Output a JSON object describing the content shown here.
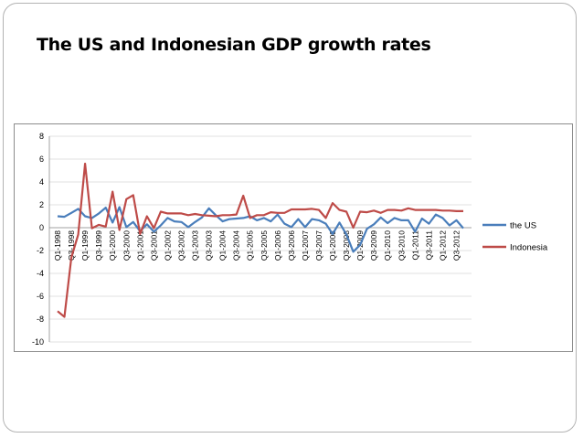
{
  "slide": {
    "title": "The US and Indonesian GDP growth rates",
    "page_number": ""
  },
  "chart_data": {
    "type": "line",
    "title": "",
    "xlabel": "",
    "ylabel": "",
    "ylim": [
      -10,
      8
    ],
    "yticks": [
      8,
      6,
      4,
      2,
      0,
      -2,
      -4,
      -6,
      -8,
      -10
    ],
    "grid": true,
    "legend_placement": "right",
    "tick_labels": [
      "Q1-1998",
      "Q3-1998",
      "Q1-1999",
      "Q3-1999",
      "Q1-2000",
      "Q3-2000",
      "Q1-2001",
      "Q3-2001",
      "Q1-2002",
      "Q3-2002",
      "Q1-2003",
      "Q3-2003",
      "Q1-2004",
      "Q3-2004",
      "Q1-2005",
      "Q3-2005",
      "Q1-2006",
      "Q3-2006",
      "Q1-2007",
      "Q3-2007",
      "Q1-2008",
      "Q3-2008",
      "Q1-2009",
      "Q3-2009",
      "Q1-2010",
      "Q3-2010",
      "Q1-2011",
      "Q3-2011",
      "Q1-2012",
      "Q3-2012"
    ],
    "x_quarters": [
      "Q1-1998",
      "Q2-1998",
      "Q3-1998",
      "Q4-1998",
      "Q1-1999",
      "Q2-1999",
      "Q3-1999",
      "Q4-1999",
      "Q1-2000",
      "Q2-2000",
      "Q3-2000",
      "Q4-2000",
      "Q1-2001",
      "Q2-2001",
      "Q3-2001",
      "Q4-2001",
      "Q1-2002",
      "Q2-2002",
      "Q3-2002",
      "Q4-2002",
      "Q1-2003",
      "Q2-2003",
      "Q3-2003",
      "Q4-2003",
      "Q1-2004",
      "Q2-2004",
      "Q3-2004",
      "Q4-2004",
      "Q1-2005",
      "Q2-2005",
      "Q3-2005",
      "Q4-2005",
      "Q1-2006",
      "Q2-2006",
      "Q3-2006",
      "Q4-2006",
      "Q1-2007",
      "Q2-2007",
      "Q3-2007",
      "Q4-2007",
      "Q1-2008",
      "Q2-2008",
      "Q3-2008",
      "Q4-2008",
      "Q1-2009",
      "Q2-2009",
      "Q3-2009",
      "Q4-2009",
      "Q1-2010",
      "Q2-2010",
      "Q3-2010",
      "Q4-2010",
      "Q1-2011",
      "Q2-2011",
      "Q3-2011",
      "Q4-2011",
      "Q1-2012",
      "Q2-2012",
      "Q3-2012",
      "Q4-2012"
    ],
    "series": [
      {
        "name": "the US",
        "color": "#4a7ebb",
        "values": [
          1.0,
          0.95,
          1.3,
          1.65,
          1.0,
          0.85,
          1.25,
          1.75,
          0.45,
          1.8,
          0.05,
          0.5,
          -0.3,
          0.3,
          -0.35,
          0.2,
          0.85,
          0.55,
          0.5,
          0.05,
          0.5,
          0.9,
          1.7,
          1.1,
          0.55,
          0.75,
          0.8,
          0.85,
          1.0,
          0.65,
          0.85,
          0.55,
          1.15,
          0.35,
          0.05,
          0.75,
          0.05,
          0.75,
          0.65,
          0.35,
          -0.55,
          0.45,
          -0.6,
          -2.1,
          -1.5,
          -0.1,
          0.3,
          0.9,
          0.4,
          0.85,
          0.65,
          0.65,
          -0.35,
          0.8,
          0.35,
          1.15,
          0.85,
          0.2,
          0.65,
          -0.05
        ]
      },
      {
        "name": "Indonesia",
        "color": "#be4b48",
        "values": [
          -7.3,
          -7.8,
          -2.6,
          -0.6,
          5.6,
          -0.05,
          0.25,
          0.1,
          3.15,
          -0.2,
          2.5,
          2.85,
          -0.55,
          1.0,
          -0.05,
          1.4,
          1.25,
          1.25,
          1.25,
          1.1,
          1.2,
          1.1,
          1.05,
          1.0,
          1.1,
          1.1,
          1.15,
          2.8,
          0.85,
          1.1,
          1.1,
          1.35,
          1.3,
          1.3,
          1.6,
          1.6,
          1.6,
          1.65,
          1.55,
          0.85,
          2.15,
          1.55,
          1.4,
          0.0,
          1.4,
          1.35,
          1.5,
          1.3,
          1.55,
          1.55,
          1.5,
          1.7,
          1.55,
          1.55,
          1.55,
          1.55,
          1.5,
          1.5,
          1.45,
          1.45
        ]
      }
    ]
  }
}
